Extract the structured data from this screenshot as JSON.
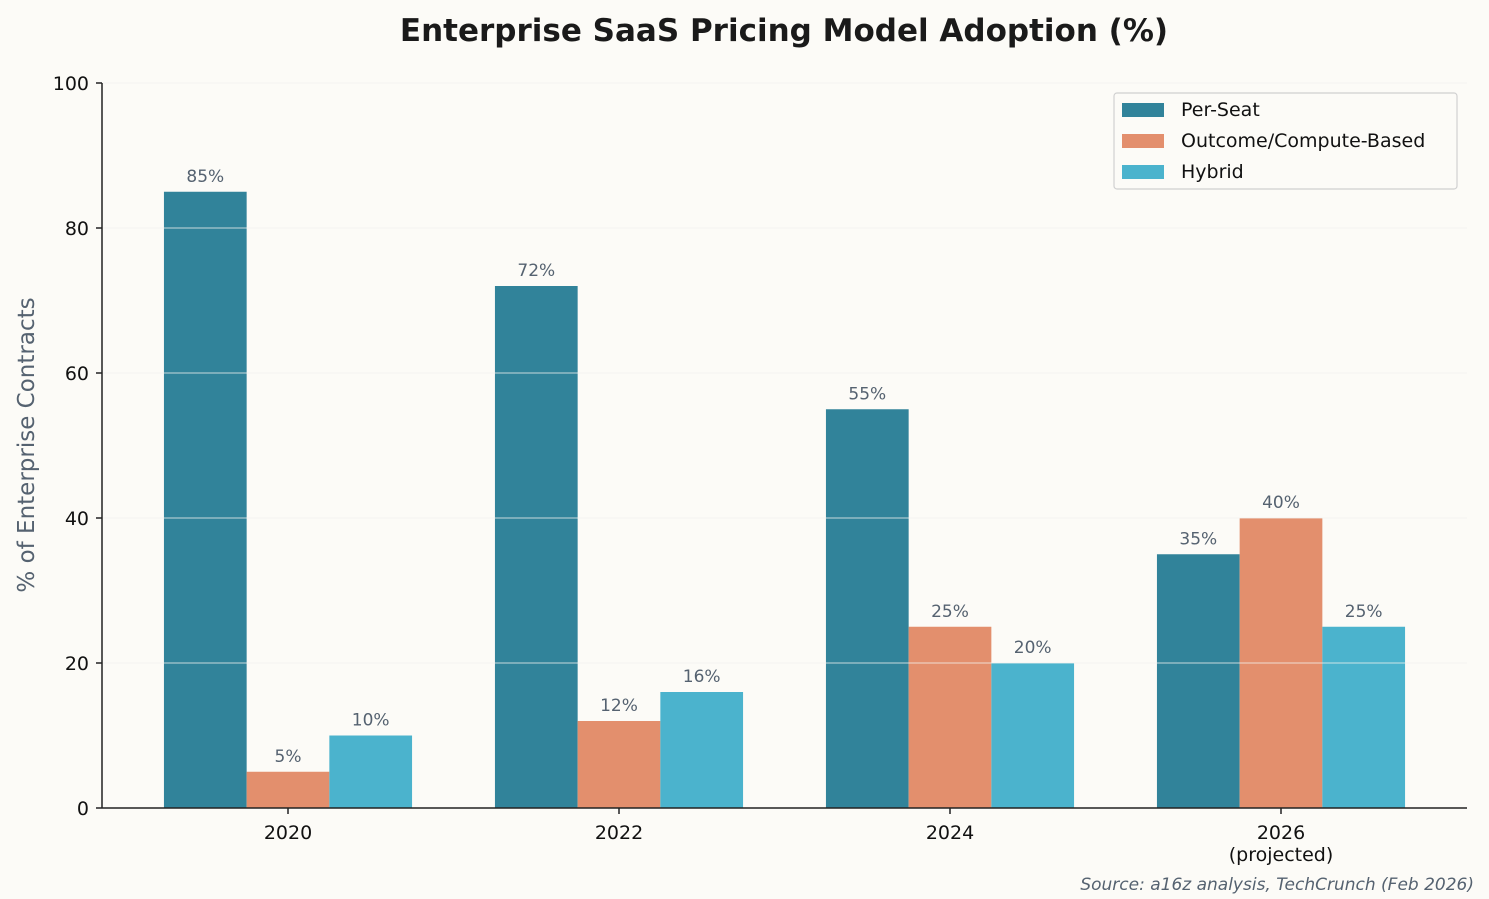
{
  "chart_data": {
    "type": "bar",
    "title": "Enterprise SaaS Pricing Model Adoption (%)",
    "xlabel": "",
    "ylabel": "% of Enterprise Contracts",
    "categories": [
      "2020",
      "2022",
      "2024",
      "2026\n(projected)"
    ],
    "series": [
      {
        "name": "Per-Seat",
        "color": "#31839a",
        "values": [
          85,
          72,
          55,
          35
        ],
        "labels": [
          "85%",
          "72%",
          "55%",
          "35%"
        ]
      },
      {
        "name": "Outcome/Compute-Based",
        "color": "#e38f6d",
        "values": [
          5,
          12,
          25,
          40
        ],
        "labels": [
          "5%",
          "12%",
          "25%",
          "40%"
        ]
      },
      {
        "name": "Hybrid",
        "color": "#4bb3cd",
        "values": [
          10,
          16,
          20,
          25
        ],
        "labels": [
          "10%",
          "16%",
          "20%",
          "25%"
        ]
      }
    ],
    "ylim": [
      0,
      100
    ],
    "yticks": [
      "0",
      "20",
      "40",
      "60",
      "80",
      "100"
    ],
    "grid": true,
    "legend_position": "top-right",
    "source": "Source: a16z analysis, TechCrunch (Feb 2026)"
  }
}
